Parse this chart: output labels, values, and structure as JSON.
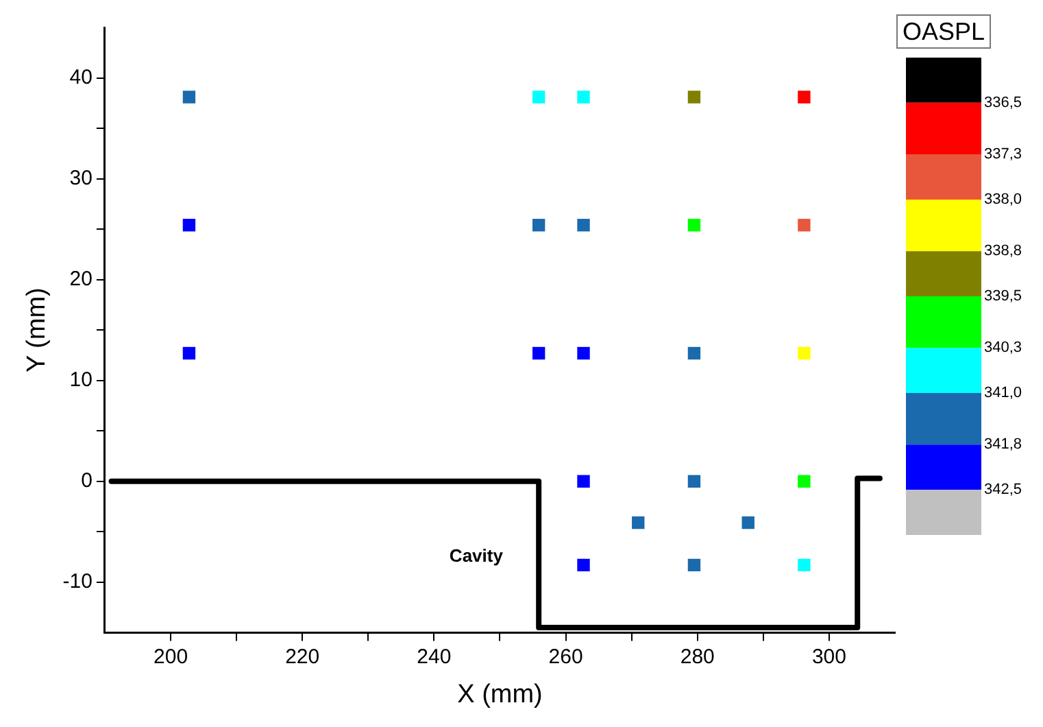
{
  "chart_data": {
    "type": "scatter",
    "xlabel": "X (mm)",
    "ylabel": "Y (mm)",
    "clabel": "OASPL",
    "marker": "square",
    "grid": false,
    "legend": false,
    "xlim": [
      190,
      310
    ],
    "xticks": [
      200,
      {
        "value": 210,
        "label": null
      },
      220,
      {
        "value": 230,
        "label": null
      },
      240,
      {
        "value": 250,
        "label": null
      },
      260,
      {
        "value": 270,
        "label": null
      },
      280,
      {
        "value": 290,
        "label": null
      },
      300
    ],
    "ylim": [
      -15,
      45
    ],
    "yticks": [
      -10,
      {
        "value": -5,
        "label": null
      },
      0,
      {
        "value": 5,
        "label": null
      },
      10,
      {
        "value": 15,
        "label": null
      },
      20,
      {
        "value": 25,
        "label": null
      },
      30,
      {
        "value": 35,
        "label": null
      },
      40
    ],
    "clim": [
      343.2,
      335.8
    ],
    "cticks": [
      {
        "value": 336.5,
        "label": "336,5"
      },
      {
        "value": 337.3,
        "label": "337,3"
      },
      {
        "value": 338.0,
        "label": "338,0"
      },
      {
        "value": 338.8,
        "label": "338,8"
      },
      {
        "value": 339.5,
        "label": "339,5"
      },
      {
        "value": 340.3,
        "label": "340,3"
      },
      {
        "value": 341.0,
        "label": "341,0"
      },
      {
        "value": 341.8,
        "label": "341,8"
      },
      {
        "value": 342.5,
        "label": "342,5"
      }
    ],
    "colors": [
      "#000000",
      "#ff0000",
      "#e8573b",
      "#ffff00",
      "#808000",
      "#00ff00",
      "#00ffff",
      "#1a6aad",
      "#0000ff",
      "#c0c0c0"
    ],
    "annotations": [
      "Cavity"
    ],
    "series": [
      {
        "type": "scatter",
        "x": [
          202.8,
          202.8,
          202.8,
          255.9,
          255.9,
          255.9,
          262.7,
          262.7,
          262.7,
          262.7,
          262.7,
          279.5,
          279.5,
          279.5,
          279.5,
          279.5,
          296.2,
          296.2,
          296.2,
          296.2,
          296.2,
          271.0,
          287.7
        ],
        "values": [
          38.1,
          25.4,
          12.7,
          38.1,
          25.4,
          12.7,
          38.1,
          25.4,
          12.7,
          0,
          -8.3,
          38.1,
          25.4,
          12.7,
          0,
          -8.3,
          38.1,
          25.4,
          12.7,
          0,
          -8.3,
          -4.1,
          -4.1
        ],
        "colors": [
          "#1a6aad",
          "#0000ff",
          "#0000ff",
          "#00ffff",
          "#1a6aad",
          "#0000ff",
          "#00ffff",
          "#1a6aad",
          "#0000ff",
          "#0000ff",
          "#0000ff",
          "#808000",
          "#00ff00",
          "#1a6aad",
          "#1a6aad",
          "#1a6aad",
          "#ff0000",
          "#e8573b",
          "#ffff00",
          "#00ff00",
          "#00ffff",
          "#1a6aad",
          "#1a6aad"
        ]
      },
      {
        "type": "line",
        "color": "#000000",
        "marker": "none",
        "x": [
          191,
          255.9,
          255.9,
          304.3,
          304.3,
          307.7
        ],
        "values": [
          0,
          0,
          -14.5,
          -14.5,
          0.3,
          0.3
        ]
      }
    ]
  }
}
